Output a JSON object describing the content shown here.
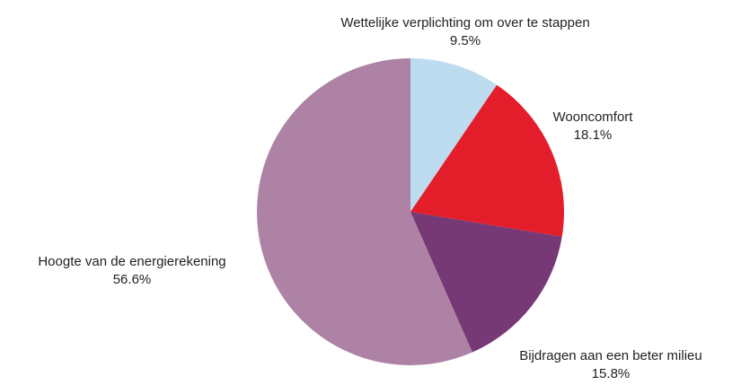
{
  "chart_data": {
    "type": "pie",
    "categories": [
      "Wettelijke verplichting om over te stappen",
      "Wooncomfort",
      "Bijdragen aan een beter milieu",
      "Hoogte van de energierekening"
    ],
    "values": [
      9.5,
      18.1,
      15.8,
      56.6
    ],
    "value_labels": [
      "9.5%",
      "18.1%",
      "15.8%",
      "56.6%"
    ],
    "colors": [
      "#bddcf0",
      "#e31e2a",
      "#773876",
      "#ad82a5"
    ]
  }
}
